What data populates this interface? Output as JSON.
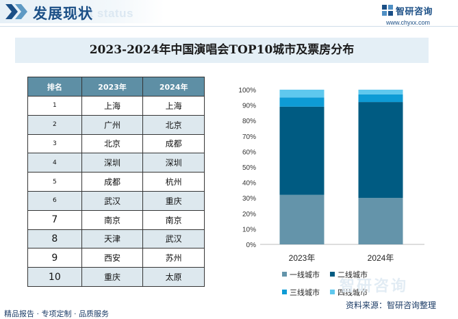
{
  "header": {
    "title": "发展现状",
    "watermark": "ment status"
  },
  "brand": {
    "name": "智研咨询",
    "url": "www.chyxx.com",
    "watermark": "智研咨询"
  },
  "title": "2023-2024年中国演唱会TOP10城市及票房分布",
  "table": {
    "headers": [
      "排名",
      "2023年",
      "2024年"
    ],
    "rows": [
      [
        "1",
        "上海",
        "上海"
      ],
      [
        "2",
        "广州",
        "北京"
      ],
      [
        "3",
        "北京",
        "成都"
      ],
      [
        "4",
        "深圳",
        "深圳"
      ],
      [
        "5",
        "成都",
        "杭州"
      ],
      [
        "6",
        "武汉",
        "重庆"
      ],
      [
        "7",
        "南京",
        "南京"
      ],
      [
        "8",
        "天津",
        "武汉"
      ],
      [
        "9",
        "西安",
        "苏州"
      ],
      [
        "10",
        "重庆",
        "太原"
      ]
    ]
  },
  "chart_data": {
    "type": "bar",
    "stacked": true,
    "categories": [
      "2023年",
      "2024年"
    ],
    "series": [
      {
        "name": "一线城市",
        "values": [
          32,
          30
        ],
        "color": "#6494aa"
      },
      {
        "name": "二线城市",
        "values": [
          57,
          62
        ],
        "color": "#005b82"
      },
      {
        "name": "三线城市",
        "values": [
          6,
          5
        ],
        "color": "#0e9bd5"
      },
      {
        "name": "四线城市",
        "values": [
          5,
          3
        ],
        "color": "#5fc8ee"
      }
    ],
    "ylim": [
      0,
      100
    ],
    "yticks": [
      "0%",
      "10%",
      "20%",
      "30%",
      "40%",
      "50%",
      "60%",
      "70%",
      "80%",
      "90%",
      "100%"
    ],
    "legend_position": "bottom",
    "grid": false
  },
  "footer": {
    "services": "精品报告 · 专项定制 · 品质服务",
    "source": "资料来源：智研咨询整理"
  },
  "colors": {
    "brand_blue": "#1b4f86",
    "table_header": "#5e8fa5",
    "title_band": "#e4eff6"
  }
}
